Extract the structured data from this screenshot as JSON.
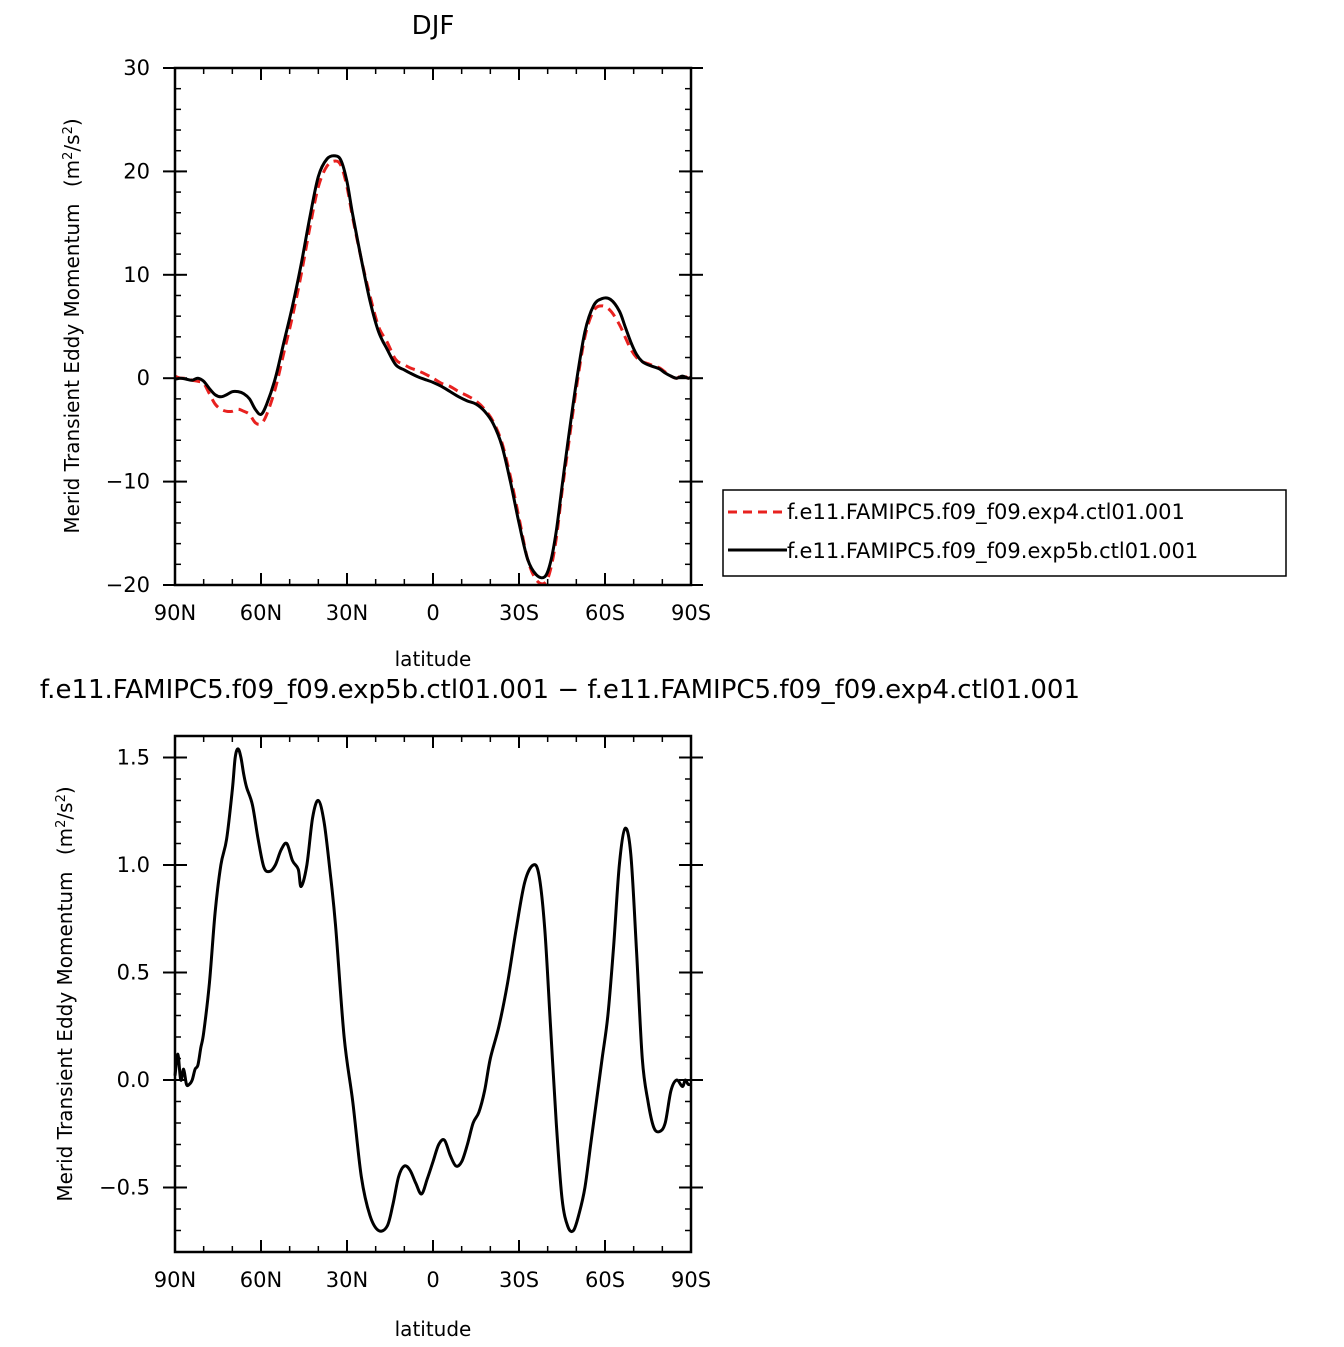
{
  "chart_data": [
    {
      "type": "line",
      "title": "DJF",
      "xlabel": "latitude",
      "ylabel": "Merid Transient Eddy Momentum",
      "ylabel_units_base": "(m",
      "ylabel_units_mid": "/s",
      "ylabel_units_end": ")",
      "ylabel_units_sup": "2",
      "xlim": [
        -90,
        90
      ],
      "ylim": [
        -20,
        30
      ],
      "xticks": [
        -90,
        -60,
        -30,
        0,
        30,
        60,
        90
      ],
      "xtick_labels": [
        "90N",
        "60N",
        "30N",
        "0",
        "30S",
        "60S",
        "90S"
      ],
      "yticks": [
        -20,
        -10,
        0,
        10,
        20,
        30
      ],
      "ytick_labels": [
        "−20",
        "−10",
        "0",
        "10",
        "20",
        "30"
      ],
      "legend_position": "right",
      "series": [
        {
          "name": "f.e11.FAMIPC5.f09_f09.exp4.ctl01.001",
          "color": "#e8211f",
          "dash": "dashed",
          "x": [
            -90,
            -88,
            -86,
            -84,
            -82,
            -80,
            -78,
            -76,
            -74,
            -72,
            -70,
            -68,
            -66,
            -64,
            -62,
            -60,
            -58,
            -55,
            -52,
            -49,
            -46,
            -43,
            -40,
            -37,
            -34,
            -32,
            -30,
            -28,
            -25,
            -22,
            -19,
            -16,
            -13,
            -10,
            -8,
            -5,
            -2,
            0,
            3,
            6,
            9,
            12,
            15,
            18,
            21,
            24,
            27,
            30,
            33,
            36,
            39,
            41,
            43,
            45,
            47,
            50,
            53,
            56,
            59,
            62,
            65,
            67,
            69,
            71,
            73,
            75,
            77,
            79,
            81,
            83,
            85,
            87,
            89,
            90
          ],
          "y": [
            0.2,
            0.0,
            0.0,
            -0.2,
            -0.3,
            -0.5,
            -1.5,
            -2.5,
            -3.0,
            -3.2,
            -3.2,
            -3.0,
            -3.2,
            -3.5,
            -4.3,
            -4.4,
            -3.5,
            -1.0,
            2.5,
            6.0,
            10.0,
            14.5,
            18.5,
            20.5,
            21.0,
            20.5,
            18.5,
            15.5,
            11.5,
            8.0,
            5.0,
            3.5,
            1.8,
            1.3,
            1.0,
            0.7,
            0.3,
            0.0,
            -0.5,
            -0.8,
            -1.3,
            -1.7,
            -2.2,
            -3.0,
            -4.2,
            -6.2,
            -9.5,
            -13.5,
            -17.5,
            -19.5,
            -19.8,
            -18.5,
            -15.5,
            -11.0,
            -7.0,
            -1.0,
            4.0,
            6.5,
            7.0,
            6.5,
            5.2,
            4.0,
            2.8,
            2.0,
            1.6,
            1.4,
            1.2,
            1.0,
            0.6,
            0.2,
            0.0,
            0.3,
            0.0,
            0.1
          ]
        },
        {
          "name": "f.e11.FAMIPC5.f09_f09.exp5b.ctl01.001",
          "color": "#000000",
          "dash": "solid",
          "x": [
            -90,
            -88,
            -86,
            -84,
            -82,
            -80,
            -78,
            -76,
            -74,
            -72,
            -70,
            -68,
            -66,
            -64,
            -62,
            -60,
            -58,
            -55,
            -52,
            -49,
            -46,
            -43,
            -40,
            -37,
            -34,
            -32,
            -30,
            -28,
            -25,
            -22,
            -19,
            -16,
            -13,
            -10,
            -8,
            -5,
            -2,
            0,
            3,
            6,
            9,
            12,
            15,
            18,
            21,
            24,
            27,
            30,
            33,
            36,
            39,
            41,
            43,
            45,
            47,
            50,
            53,
            56,
            59,
            62,
            65,
            67,
            69,
            71,
            73,
            75,
            77,
            79,
            81,
            83,
            85,
            87,
            89,
            90
          ],
          "y": [
            -0.1,
            0.0,
            -0.1,
            -0.2,
            0.0,
            -0.3,
            -1.0,
            -1.6,
            -1.8,
            -1.6,
            -1.3,
            -1.3,
            -1.5,
            -2.0,
            -3.0,
            -3.5,
            -2.5,
            0.0,
            3.5,
            7.0,
            11.0,
            15.5,
            19.5,
            21.2,
            21.5,
            21.0,
            19.0,
            15.8,
            11.5,
            7.5,
            4.5,
            2.8,
            1.3,
            0.8,
            0.5,
            0.1,
            -0.2,
            -0.4,
            -0.8,
            -1.3,
            -1.8,
            -2.2,
            -2.5,
            -3.2,
            -4.4,
            -6.5,
            -10.0,
            -14.0,
            -17.5,
            -19.0,
            -19.2,
            -17.8,
            -14.8,
            -10.5,
            -6.3,
            -0.4,
            4.5,
            7.0,
            7.7,
            7.6,
            6.5,
            5.0,
            3.5,
            2.3,
            1.6,
            1.3,
            1.1,
            0.9,
            0.5,
            0.2,
            0.0,
            0.2,
            0.0,
            0.1
          ]
        }
      ]
    },
    {
      "type": "line",
      "title": "f.e11.FAMIPC5.f09_f09.exp5b.ctl01.001 − f.e11.FAMIPC5.f09_f09.exp4.ctl01.001",
      "xlabel": "latitude",
      "ylabel": "Merid Transient Eddy Momentum",
      "ylabel_units_base": "(m",
      "ylabel_units_mid": "/s",
      "ylabel_units_end": ")",
      "ylabel_units_sup": "2",
      "xlim": [
        -90,
        90
      ],
      "ylim": [
        -0.8,
        1.6
      ],
      "xticks": [
        -90,
        -60,
        -30,
        0,
        30,
        60,
        90
      ],
      "xtick_labels": [
        "90N",
        "60N",
        "30N",
        "0",
        "30S",
        "60S",
        "90S"
      ],
      "yticks": [
        -0.5,
        0.0,
        0.5,
        1.0,
        1.5
      ],
      "ytick_labels": [
        "−0.5",
        "0.0",
        "0.5",
        "1.0",
        "1.5"
      ],
      "series": [
        {
          "color": "#000000",
          "dash": "solid",
          "x": [
            -90,
            -89,
            -88,
            -87,
            -86,
            -85,
            -84,
            -83,
            -82,
            -81,
            -80,
            -78,
            -76,
            -74,
            -72,
            -70,
            -69,
            -68,
            -67,
            -66,
            -65,
            -63,
            -61,
            -59,
            -57,
            -55,
            -53,
            -51,
            -49,
            -47,
            -46,
            -44,
            -42,
            -40,
            -38,
            -36,
            -34,
            -31,
            -28,
            -25,
            -22,
            -19,
            -16,
            -14,
            -12,
            -10,
            -8,
            -6,
            -4,
            -2,
            0,
            2,
            4,
            6,
            8,
            10,
            12,
            14,
            16,
            18,
            20,
            23,
            26,
            29,
            32,
            35,
            37,
            39,
            41,
            43,
            45,
            47,
            49,
            51,
            53,
            55,
            57,
            59,
            61,
            63,
            65,
            67,
            69,
            71,
            73,
            75,
            77,
            79,
            81,
            83,
            85,
            87,
            88,
            89,
            90
          ],
          "y": [
            0.02,
            0.12,
            0.0,
            0.05,
            -0.02,
            -0.02,
            0.0,
            0.05,
            0.07,
            0.15,
            0.22,
            0.45,
            0.78,
            1.0,
            1.12,
            1.35,
            1.5,
            1.54,
            1.5,
            1.42,
            1.36,
            1.28,
            1.12,
            0.99,
            0.97,
            1.0,
            1.07,
            1.1,
            1.02,
            0.98,
            0.9,
            1.0,
            1.22,
            1.3,
            1.2,
            0.98,
            0.72,
            0.2,
            -0.1,
            -0.45,
            -0.63,
            -0.7,
            -0.68,
            -0.58,
            -0.45,
            -0.4,
            -0.42,
            -0.48,
            -0.53,
            -0.46,
            -0.38,
            -0.3,
            -0.28,
            -0.35,
            -0.4,
            -0.38,
            -0.3,
            -0.2,
            -0.15,
            -0.05,
            0.1,
            0.25,
            0.45,
            0.7,
            0.92,
            1.0,
            0.95,
            0.7,
            0.25,
            -0.2,
            -0.55,
            -0.68,
            -0.7,
            -0.62,
            -0.5,
            -0.3,
            -0.1,
            0.1,
            0.3,
            0.62,
            1.0,
            1.17,
            1.05,
            0.6,
            0.1,
            -0.1,
            -0.22,
            -0.24,
            -0.2,
            -0.05,
            0.0,
            -0.03,
            0.0,
            -0.02,
            -0.02
          ]
        }
      ]
    }
  ]
}
